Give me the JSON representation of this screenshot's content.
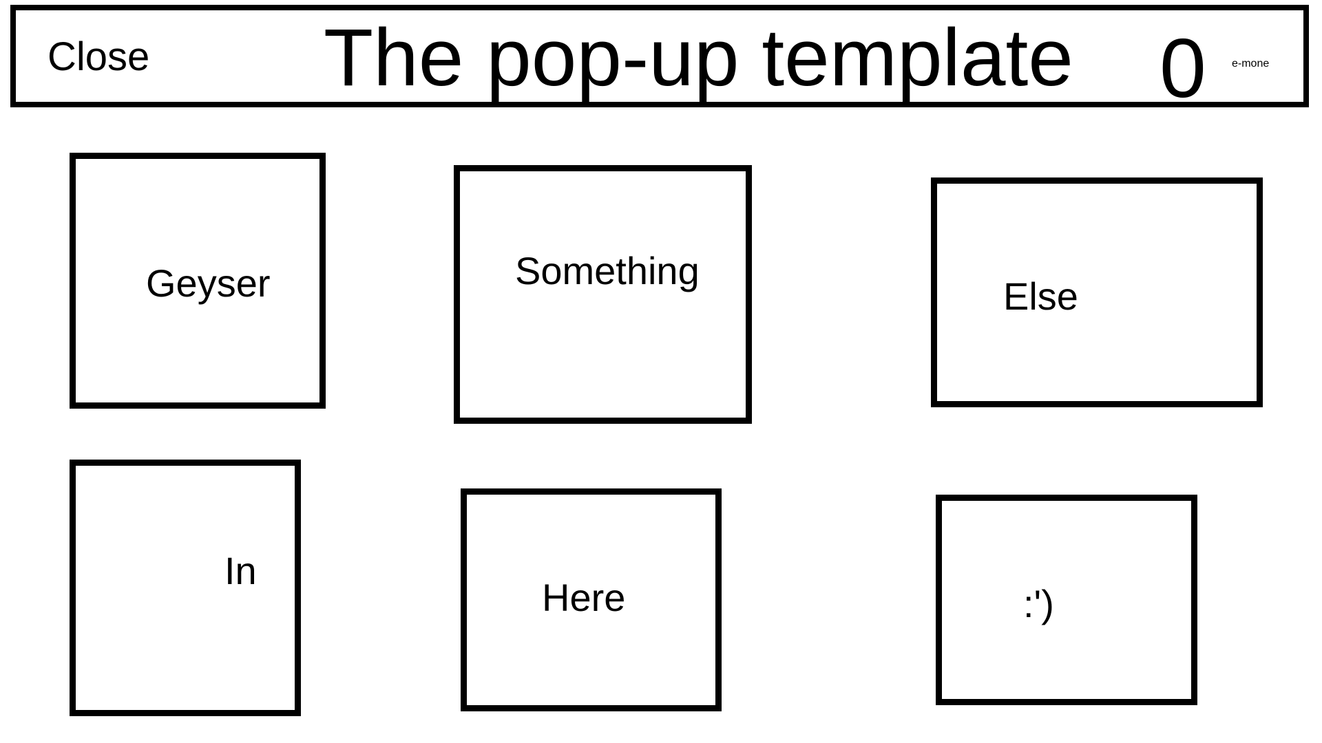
{
  "header": {
    "close_label": "Close",
    "title": "The pop-up template",
    "counter": "0",
    "username": "e-mone"
  },
  "tiles": [
    {
      "label": "Geyser"
    },
    {
      "label": "Something"
    },
    {
      "label": "Else"
    },
    {
      "label": "In"
    },
    {
      "label": "Here"
    },
    {
      "label": ":')"
    }
  ]
}
